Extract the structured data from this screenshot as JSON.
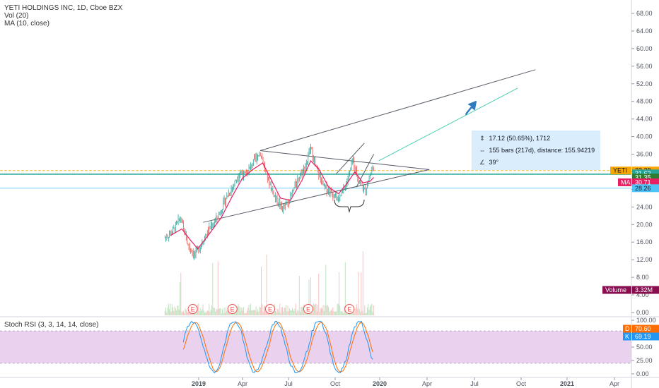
{
  "chart_data": [
    {
      "type": "candlestick",
      "title": "YETI HOLDINGS INC, 1D, Cboe BZX",
      "indicators": [
        "Vol (20)",
        "MA (10, close)"
      ],
      "price_axis_ticks": [
        "68.00",
        "64.00",
        "60.00",
        "56.00",
        "52.00",
        "48.00",
        "44.00",
        "40.00",
        "36.00",
        "32.00",
        "28.00",
        "24.00",
        "20.00",
        "16.00",
        "12.00",
        "8.00",
        "4.00",
        "0.00"
      ],
      "ylim": [
        0,
        70
      ],
      "time_axis_ticks": [
        "2019",
        "Apr",
        "Jul",
        "Oct",
        "2020",
        "Apr",
        "Jul",
        "Oct",
        "2021",
        "Apr"
      ],
      "price_path": [
        [
          "2018-10-25",
          17.0
        ],
        [
          "2018-11-10",
          18.5
        ],
        [
          "2018-11-25",
          21.5
        ],
        [
          "2018-12-10",
          15.5
        ],
        [
          "2018-12-24",
          13.0
        ],
        [
          "2019-01-10",
          16.5
        ],
        [
          "2019-01-25",
          19.5
        ],
        [
          "2019-02-10",
          22.0
        ],
        [
          "2019-02-25",
          26.0
        ],
        [
          "2019-03-10",
          28.5
        ],
        [
          "2019-03-25",
          32.0
        ],
        [
          "2019-04-05",
          31.0
        ],
        [
          "2019-04-20",
          34.0
        ],
        [
          "2019-05-05",
          36.5
        ],
        [
          "2019-05-20",
          30.5
        ],
        [
          "2019-06-05",
          26.0
        ],
        [
          "2019-06-20",
          23.5
        ],
        [
          "2019-07-05",
          26.0
        ],
        [
          "2019-07-20",
          30.5
        ],
        [
          "2019-08-05",
          33.5
        ],
        [
          "2019-08-15",
          37.5
        ],
        [
          "2019-08-25",
          33.0
        ],
        [
          "2019-09-10",
          28.5
        ],
        [
          "2019-09-25",
          27.5
        ],
        [
          "2019-10-10",
          25.5
        ],
        [
          "2019-10-25",
          29.0
        ],
        [
          "2019-11-08",
          34.5
        ],
        [
          "2019-11-20",
          30.0
        ],
        [
          "2019-12-02",
          27.5
        ],
        [
          "2019-12-12",
          31.0
        ],
        [
          "2019-12-20",
          33.5
        ]
      ],
      "ma_path": [
        [
          "2018-11-05",
          17.5
        ],
        [
          "2018-11-28",
          19.0
        ],
        [
          "2018-12-15",
          16.5
        ],
        [
          "2018-12-30",
          14.5
        ],
        [
          "2019-01-20",
          17.5
        ],
        [
          "2019-02-15",
          21.5
        ],
        [
          "2019-03-10",
          26.5
        ],
        [
          "2019-03-30",
          30.5
        ],
        [
          "2019-04-20",
          32.5
        ],
        [
          "2019-05-10",
          34.0
        ],
        [
          "2019-05-28",
          30.0
        ],
        [
          "2019-06-15",
          26.0
        ],
        [
          "2019-07-05",
          25.5
        ],
        [
          "2019-07-28",
          30.0
        ],
        [
          "2019-08-15",
          34.5
        ],
        [
          "2019-09-01",
          32.5
        ],
        [
          "2019-09-20",
          28.5
        ],
        [
          "2019-10-10",
          27.0
        ],
        [
          "2019-10-28",
          29.5
        ],
        [
          "2019-11-12",
          32.0
        ],
        [
          "2019-11-28",
          29.5
        ],
        [
          "2019-12-12",
          29.8
        ],
        [
          "2019-12-20",
          30.7
        ]
      ],
      "trendlines": [
        {
          "name": "support",
          "from": [
            "2019-01-10",
            20.5
          ],
          "to": [
            "2020-04-10",
            32.5
          ]
        },
        {
          "name": "resistance",
          "from": [
            "2019-05-05",
            36.8
          ],
          "to": [
            "2020-04-10",
            32.5
          ]
        },
        {
          "name": "upper",
          "from": [
            "2019-05-05",
            36.8
          ],
          "to": [
            "2020-11-10",
            55.2
          ]
        },
        {
          "name": "measure",
          "from": [
            "2019-12-30",
            34.5
          ],
          "to": [
            "2020-10-05",
            51.0
          ]
        },
        {
          "name": "channel-a",
          "from": [
            "2019-10-05",
            31.5
          ],
          "to": [
            "2019-12-01",
            38.5
          ]
        },
        {
          "name": "channel-b",
          "from": [
            "2019-11-15",
            28.5
          ],
          "to": [
            "2019-12-20",
            36.0
          ]
        }
      ],
      "horizontal_lines": [
        {
          "value": 32.28,
          "color": "#f7a600",
          "style": "dashed"
        },
        {
          "value": 31.62,
          "color": "#26a69a"
        },
        {
          "value": 31.35,
          "color": "#26a69a"
        },
        {
          "value": 28.26,
          "color": "#4fc3f7"
        }
      ],
      "earnings_markers": [
        "2018-12-20",
        "2019-03-10",
        "2019-05-25",
        "2019-08-10",
        "2019-11-01"
      ],
      "earnings_label": "E",
      "measurement": {
        "line1": "17.12 (50.65%), 1712",
        "line2": "155 bars (217d), distance: 155.94219",
        "line3": "39°"
      },
      "price_labels": [
        {
          "text": "YETI",
          "value": "32.28",
          "bg": "#f7a600",
          "fg": "#131722",
          "y": 32.28
        },
        {
          "text": "",
          "value": "31.62",
          "bg": "#26a69a",
          "fg": "#ffffff",
          "y": 31.62
        },
        {
          "text": "",
          "value": "31.35",
          "bg": "#2e7d32",
          "fg": "#ffffff",
          "y": 30.7
        },
        {
          "text": "MA",
          "value": "30.71",
          "bg": "#e91e63",
          "fg": "#ffffff",
          "y": 29.6
        },
        {
          "text": "",
          "value": "28.26",
          "bg": "#4fc3f7",
          "fg": "#131722",
          "y": 28.26
        },
        {
          "text": "Volume",
          "value": "3.32M",
          "bg": "#880e4f",
          "fg": "#ffffff",
          "y": 2.5
        }
      ]
    },
    {
      "type": "line",
      "title": "Stoch RSI (3, 3, 14, 14, close)",
      "ylim": [
        0,
        100
      ],
      "ticks": [
        "100.00",
        "75.00",
        "50.00",
        "25.00",
        "0.00"
      ],
      "bands": [
        80,
        20
      ],
      "band_color": "#e1bee7",
      "series": [
        {
          "name": "D",
          "color": "#ff6d00",
          "value": "70.60"
        },
        {
          "name": "K",
          "color": "#2196f3",
          "value": "69.19"
        }
      ]
    }
  ]
}
